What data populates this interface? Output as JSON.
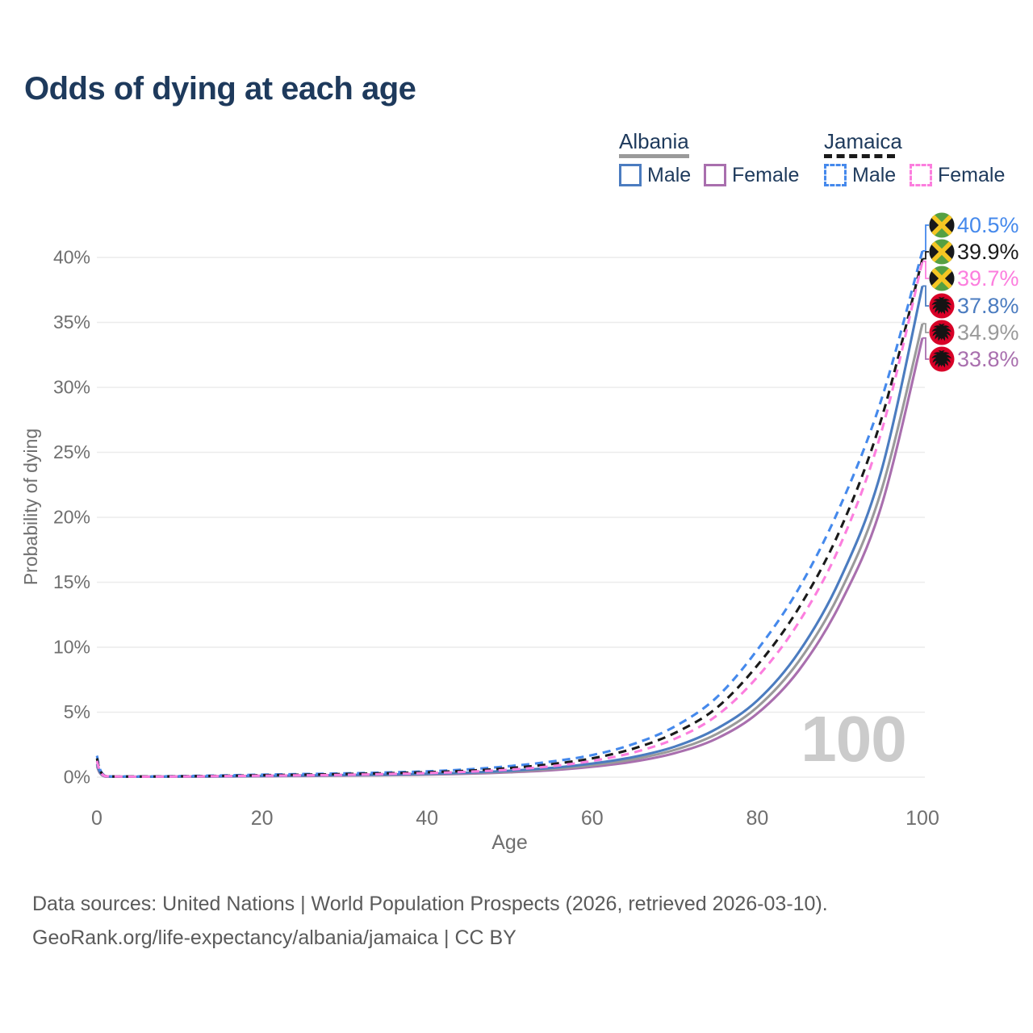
{
  "title": "Odds of dying at each age",
  "watermark": "100",
  "legend": {
    "albania": {
      "label": "Albania",
      "male": "Male",
      "female": "Female"
    },
    "jamaica": {
      "label": "Jamaica",
      "male": "Male",
      "female": "Female"
    }
  },
  "footer": {
    "line1": "Data sources: United Nations | World Population Prospects (2026, retrieved 2026-03-10).",
    "line2": "GeoRank.org/life-expectancy/albania/jamaica | CC BY"
  },
  "colors": {
    "title_text": "#1e3a5c",
    "axis_text": "#6f6f6f",
    "gridline": "#ececec",
    "footer_text": "#5a5a5a",
    "watermark": "#cbcbcb",
    "albania_underline": "#9a9a9a",
    "jamaica_underline": "#1a1a1a",
    "albania_male": "#4b7cc0",
    "albania_both": "#9a9a9a",
    "albania_female": "#a96fae",
    "jamaica_male": "#4589ec",
    "jamaica_both": "#1a1a1a",
    "jamaica_female": "#fc7ede",
    "albania_flag_red": "#d80027",
    "jamaica_flag_green": "#55a042",
    "jamaica_flag_yellow": "#f5c623",
    "jamaica_flag_black": "#17181a"
  },
  "chart_data": {
    "type": "line",
    "title": "Odds of dying at each age",
    "xlabel": "Age",
    "ylabel": "Probability of dying",
    "xlim": [
      0,
      100
    ],
    "ylim_percent": [
      0,
      42
    ],
    "grid": "horizontal-only",
    "x_ticks": [
      0,
      20,
      40,
      60,
      80,
      100
    ],
    "y_ticks_percent": [
      0,
      5,
      10,
      15,
      20,
      25,
      30,
      35,
      40
    ],
    "y_tick_labels": [
      "0%",
      "5%",
      "10%",
      "15%",
      "20%",
      "25%",
      "30%",
      "35%",
      "40%"
    ],
    "x_tick_labels": [
      "0",
      "20",
      "40",
      "60",
      "80",
      "100"
    ],
    "ages": [
      0,
      1,
      5,
      10,
      15,
      20,
      25,
      30,
      35,
      40,
      45,
      50,
      55,
      60,
      65,
      70,
      75,
      80,
      85,
      90,
      95,
      100
    ],
    "series": [
      {
        "id": "jamaica_male",
        "name": "Jamaica Male",
        "country": "Jamaica",
        "sex": "Male",
        "color": "#4589ec",
        "dashed": true,
        "flag": "jamaica",
        "end_label": "40.5%",
        "end_value_percent": 40.5,
        "values_percent": [
          1.65,
          0.1,
          0.06,
          0.08,
          0.13,
          0.19,
          0.24,
          0.29,
          0.36,
          0.45,
          0.6,
          0.85,
          1.2,
          1.7,
          2.55,
          3.9,
          6.1,
          9.8,
          14.5,
          20.8,
          29.0,
          40.5
        ]
      },
      {
        "id": "jamaica_both",
        "name": "Jamaica Both sexes",
        "country": "Jamaica",
        "sex": "Both",
        "color": "#1a1a1a",
        "dashed": true,
        "flag": "jamaica",
        "end_label": "39.9%",
        "end_value_percent": 39.9,
        "values_percent": [
          1.45,
          0.09,
          0.05,
          0.07,
          0.1,
          0.15,
          0.19,
          0.24,
          0.3,
          0.38,
          0.5,
          0.7,
          1.0,
          1.45,
          2.2,
          3.4,
          5.3,
          8.6,
          13.0,
          19.0,
          27.5,
          39.9
        ]
      },
      {
        "id": "jamaica_female",
        "name": "Jamaica Female",
        "country": "Jamaica",
        "sex": "Female",
        "color": "#fc7ede",
        "dashed": true,
        "flag": "jamaica",
        "end_label": "39.7%",
        "end_value_percent": 39.7,
        "values_percent": [
          1.25,
          0.08,
          0.04,
          0.05,
          0.08,
          0.11,
          0.14,
          0.18,
          0.24,
          0.31,
          0.42,
          0.58,
          0.84,
          1.25,
          1.9,
          2.95,
          4.7,
          7.7,
          11.9,
          17.8,
          26.5,
          39.7
        ]
      },
      {
        "id": "albania_male",
        "name": "Albania Male",
        "country": "Albania",
        "sex": "Male",
        "color": "#4b7cc0",
        "dashed": false,
        "flag": "albania",
        "end_label": "37.8%",
        "end_value_percent": 37.8,
        "values_percent": [
          1.05,
          0.07,
          0.04,
          0.05,
          0.07,
          0.1,
          0.13,
          0.16,
          0.2,
          0.26,
          0.35,
          0.49,
          0.71,
          1.05,
          1.55,
          2.35,
          3.7,
          5.9,
          9.6,
          15.2,
          23.5,
          37.8
        ]
      },
      {
        "id": "albania_both",
        "name": "Albania Both sexes",
        "country": "Albania",
        "sex": "Both",
        "color": "#9a9a9a",
        "dashed": false,
        "flag": "albania",
        "end_label": "34.9%",
        "end_value_percent": 34.9,
        "values_percent": [
          0.95,
          0.06,
          0.03,
          0.04,
          0.06,
          0.08,
          0.11,
          0.14,
          0.17,
          0.23,
          0.31,
          0.43,
          0.62,
          0.92,
          1.38,
          2.1,
          3.3,
          5.4,
          8.9,
          14.2,
          22.0,
          34.9
        ]
      },
      {
        "id": "albania_female",
        "name": "Albania Female",
        "country": "Albania",
        "sex": "Female",
        "color": "#a96fae",
        "dashed": false,
        "flag": "albania",
        "end_label": "33.8%",
        "end_value_percent": 33.8,
        "values_percent": [
          0.85,
          0.05,
          0.03,
          0.04,
          0.05,
          0.07,
          0.09,
          0.12,
          0.15,
          0.2,
          0.27,
          0.37,
          0.53,
          0.8,
          1.2,
          1.85,
          2.95,
          4.9,
          8.2,
          13.3,
          20.8,
          33.8
        ]
      }
    ],
    "legend_position": "top-right",
    "annotations": [
      "100"
    ]
  }
}
